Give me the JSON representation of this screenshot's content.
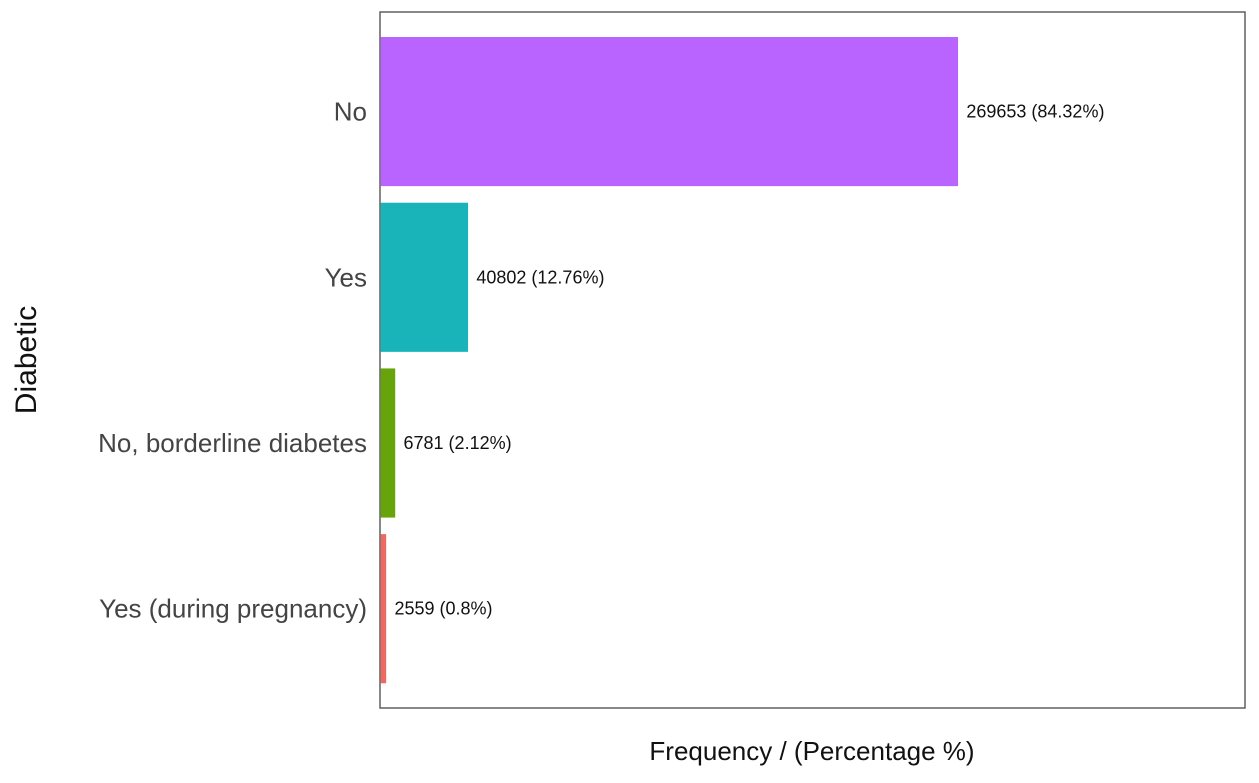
{
  "chart_data": {
    "type": "bar",
    "orientation": "horizontal",
    "categories": [
      "No",
      "Yes",
      "No, borderline diabetes",
      "Yes (during pregnancy)"
    ],
    "values": [
      269653,
      40802,
      6781,
      2559
    ],
    "percentages": [
      84.32,
      12.76,
      2.12,
      0.8
    ],
    "data_labels": [
      "269653 (84.32%)",
      "40802 (12.76%)",
      "6781 (2.12%)",
      "2559 (0.8%)"
    ],
    "colors": [
      "#B964FF",
      "#19B4B9",
      "#67A40C",
      "#EC6A61"
    ],
    "xlabel": "Frequency / (Percentage %)",
    "ylabel": "Diabetic",
    "xlim": [
      0,
      404000
    ],
    "grid": false,
    "x_tick_labels_shown": false,
    "legend": "none"
  }
}
